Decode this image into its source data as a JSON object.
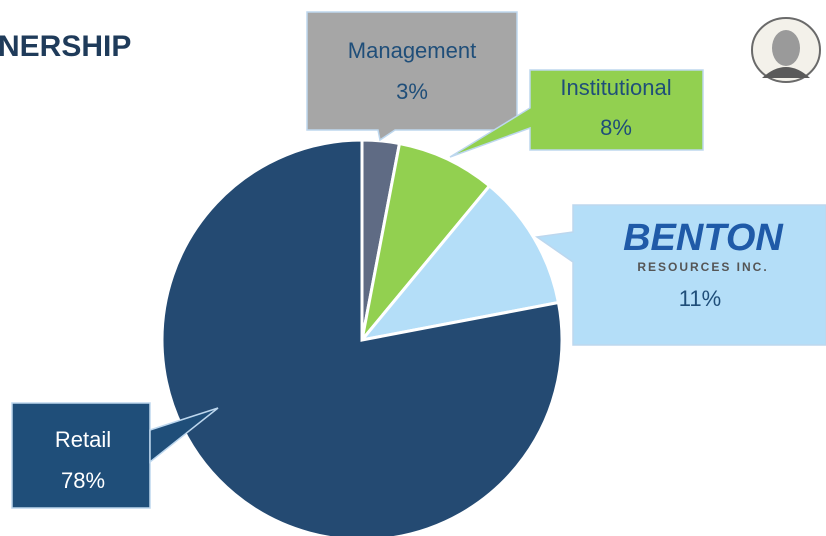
{
  "chart_data": {
    "type": "pie",
    "title": "NERSHIP",
    "categories": [
      "Management",
      "Institutional",
      null,
      "Retail"
    ],
    "values": [
      3,
      8,
      11,
      78
    ],
    "value_labels": [
      "3%",
      "8%",
      "11%",
      "78%"
    ],
    "colors": [
      "#5f6b84",
      "#92d050",
      "#b4def8",
      "#244a72"
    ],
    "logo": {
      "name": "BENTON",
      "tagline": "RESOURCES INC."
    }
  }
}
